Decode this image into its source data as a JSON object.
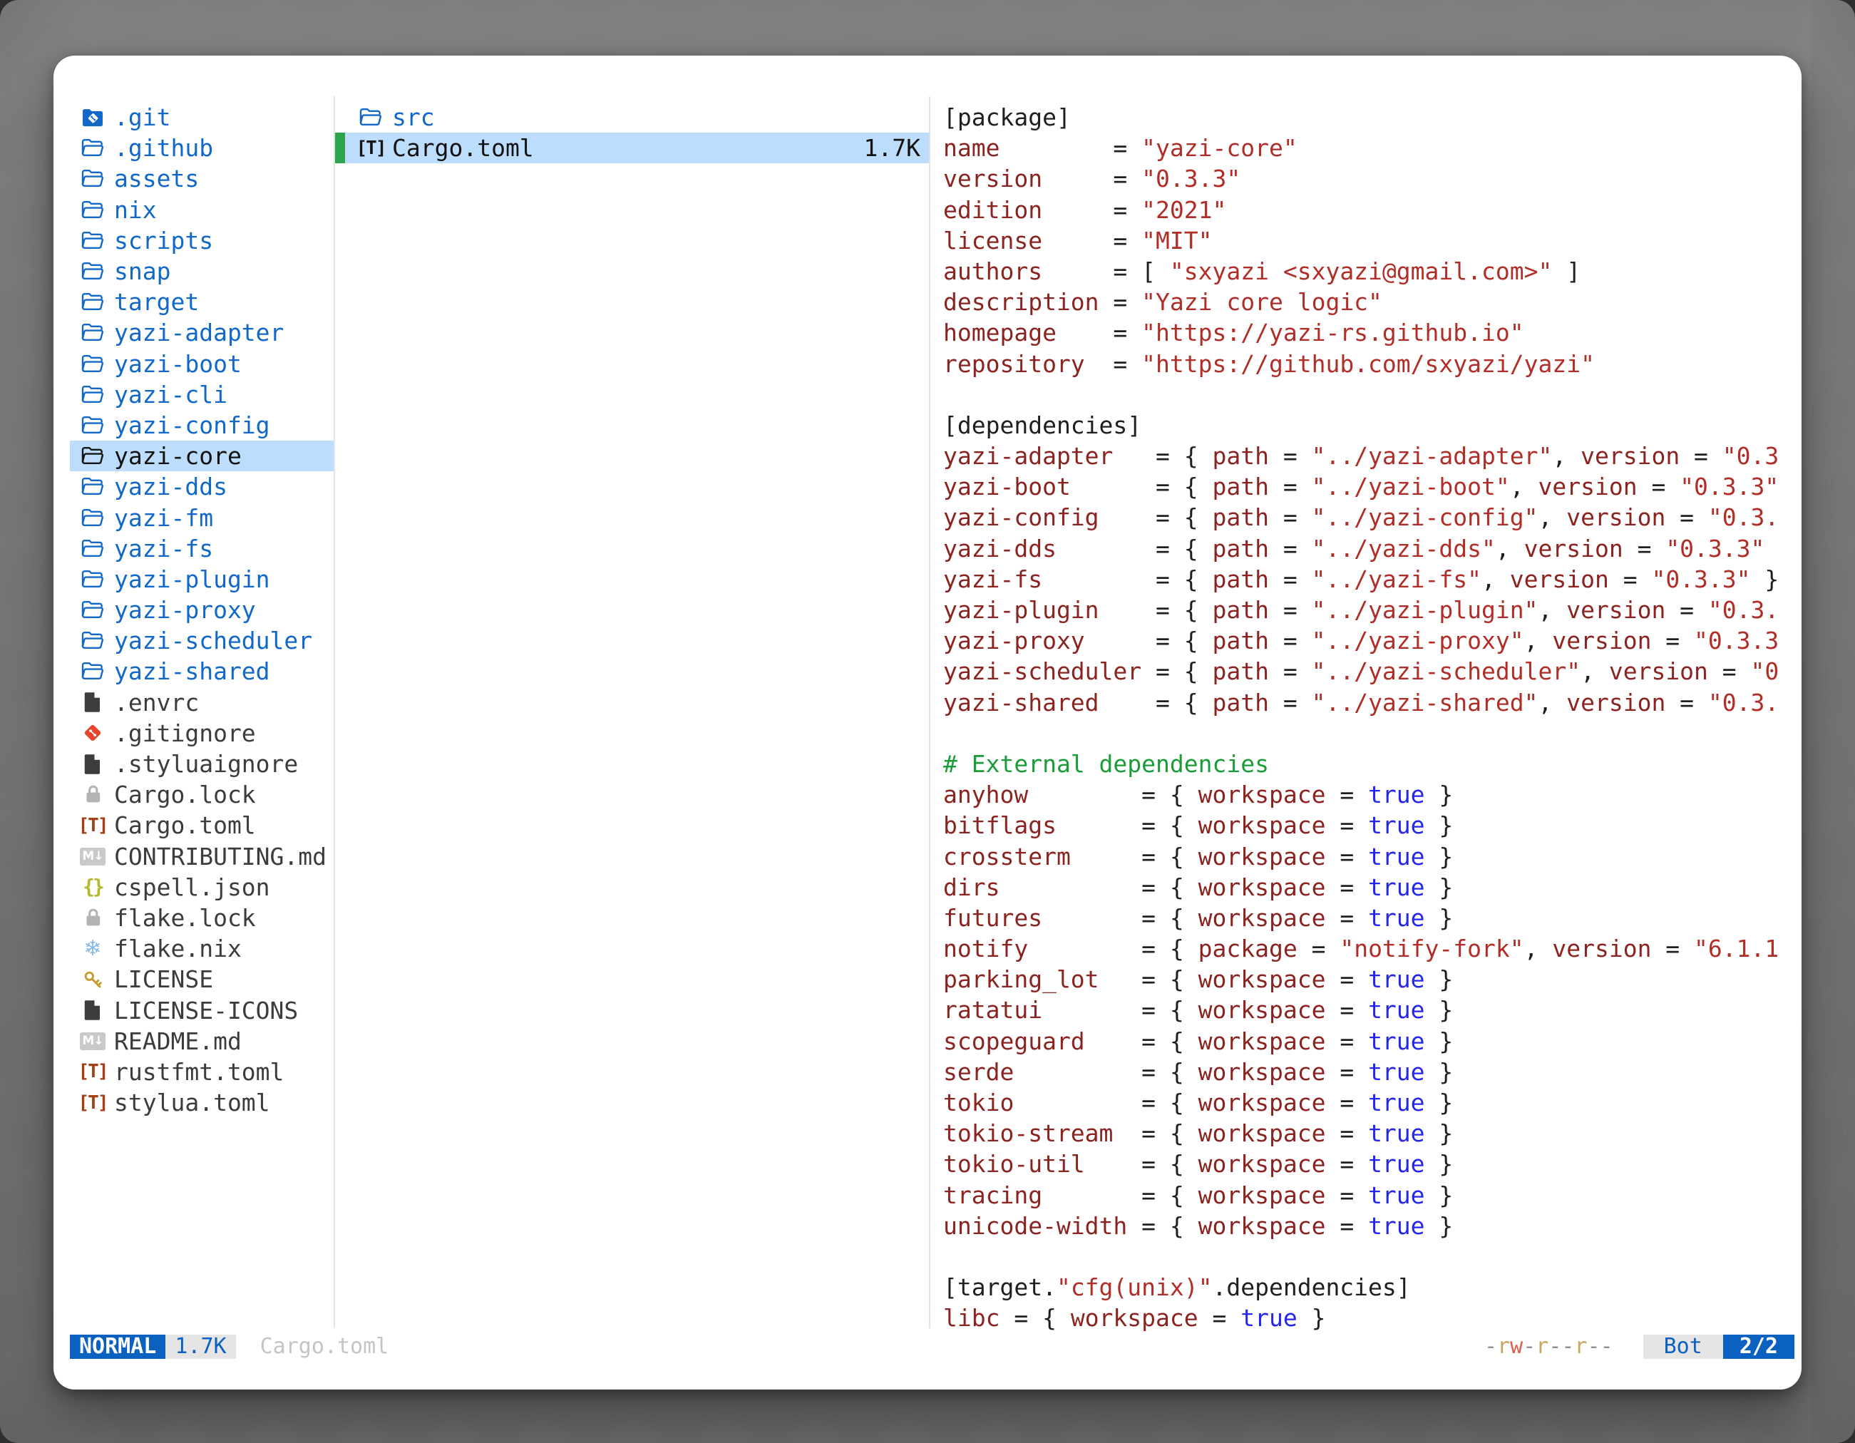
{
  "colors": {
    "accent_blue": "#1168c9",
    "selection_bg": "#bdddfc",
    "selection_marker_green": "#2ea44f",
    "status_blue": "#0a61bf",
    "status_badge_bg": "#e5e5e5",
    "syntax_key": "#8b2421",
    "syntax_string": "#b02e27",
    "syntax_bool": "#2525f0",
    "syntax_comment": "#1a9c38",
    "perm_read": "#c8a660",
    "perm_write": "#e25b51",
    "toml_icon": "#a63e15",
    "git_icon": "#e8442c"
  },
  "parent_pane": {
    "items": [
      {
        "icon": "git-folder",
        "label": ".git",
        "kind": "folder"
      },
      {
        "icon": "folder",
        "label": ".github",
        "kind": "folder"
      },
      {
        "icon": "folder",
        "label": "assets",
        "kind": "folder"
      },
      {
        "icon": "folder",
        "label": "nix",
        "kind": "folder"
      },
      {
        "icon": "folder",
        "label": "scripts",
        "kind": "folder"
      },
      {
        "icon": "folder",
        "label": "snap",
        "kind": "folder"
      },
      {
        "icon": "folder",
        "label": "target",
        "kind": "folder"
      },
      {
        "icon": "folder",
        "label": "yazi-adapter",
        "kind": "folder"
      },
      {
        "icon": "folder",
        "label": "yazi-boot",
        "kind": "folder"
      },
      {
        "icon": "folder",
        "label": "yazi-cli",
        "kind": "folder"
      },
      {
        "icon": "folder",
        "label": "yazi-config",
        "kind": "folder"
      },
      {
        "icon": "folder",
        "label": "yazi-core",
        "kind": "folder",
        "selected": true
      },
      {
        "icon": "folder",
        "label": "yazi-dds",
        "kind": "folder"
      },
      {
        "icon": "folder",
        "label": "yazi-fm",
        "kind": "folder"
      },
      {
        "icon": "folder",
        "label": "yazi-fs",
        "kind": "folder"
      },
      {
        "icon": "folder",
        "label": "yazi-plugin",
        "kind": "folder"
      },
      {
        "icon": "folder",
        "label": "yazi-proxy",
        "kind": "folder"
      },
      {
        "icon": "folder",
        "label": "yazi-scheduler",
        "kind": "folder"
      },
      {
        "icon": "folder",
        "label": "yazi-shared",
        "kind": "folder"
      },
      {
        "icon": "file",
        "label": ".envrc",
        "kind": "file"
      },
      {
        "icon": "git",
        "label": ".gitignore",
        "kind": "file"
      },
      {
        "icon": "file",
        "label": ".styluaignore",
        "kind": "file"
      },
      {
        "icon": "lock",
        "label": "Cargo.lock",
        "kind": "file"
      },
      {
        "icon": "toml",
        "label": "Cargo.toml",
        "kind": "file"
      },
      {
        "icon": "markdown",
        "label": "CONTRIBUTING.md",
        "kind": "file"
      },
      {
        "icon": "json",
        "label": "cspell.json",
        "kind": "file"
      },
      {
        "icon": "lock",
        "label": "flake.lock",
        "kind": "file"
      },
      {
        "icon": "nix",
        "label": "flake.nix",
        "kind": "file"
      },
      {
        "icon": "key",
        "label": "LICENSE",
        "kind": "file"
      },
      {
        "icon": "file",
        "label": "LICENSE-ICONS",
        "kind": "file"
      },
      {
        "icon": "markdown",
        "label": "README.md",
        "kind": "file"
      },
      {
        "icon": "toml",
        "label": "rustfmt.toml",
        "kind": "file"
      },
      {
        "icon": "toml",
        "label": "stylua.toml",
        "kind": "file"
      }
    ]
  },
  "current_pane": {
    "items": [
      {
        "icon": "folder",
        "label": "src",
        "kind": "folder"
      },
      {
        "icon": "toml",
        "label": "Cargo.toml",
        "kind": "file",
        "size": "1.7K",
        "selected": true
      }
    ]
  },
  "preview": {
    "lines": [
      [
        [
          "p",
          "[package]"
        ]
      ],
      [
        [
          "k",
          "name        "
        ],
        [
          "p",
          "= "
        ],
        [
          "s",
          "\"yazi-core\""
        ]
      ],
      [
        [
          "k",
          "version     "
        ],
        [
          "p",
          "= "
        ],
        [
          "s",
          "\"0.3.3\""
        ]
      ],
      [
        [
          "k",
          "edition     "
        ],
        [
          "p",
          "= "
        ],
        [
          "s",
          "\"2021\""
        ]
      ],
      [
        [
          "k",
          "license     "
        ],
        [
          "p",
          "= "
        ],
        [
          "s",
          "\"MIT\""
        ]
      ],
      [
        [
          "k",
          "authors     "
        ],
        [
          "p",
          "= [ "
        ],
        [
          "s",
          "\"sxyazi <sxyazi@gmail.com>\""
        ],
        [
          "p",
          " ]"
        ]
      ],
      [
        [
          "k",
          "description "
        ],
        [
          "p",
          "= "
        ],
        [
          "s",
          "\"Yazi core logic\""
        ]
      ],
      [
        [
          "k",
          "homepage    "
        ],
        [
          "p",
          "= "
        ],
        [
          "s",
          "\"https://yazi-rs.github.io\""
        ]
      ],
      [
        [
          "k",
          "repository  "
        ],
        [
          "p",
          "= "
        ],
        [
          "s",
          "\"https://github.com/sxyazi/yazi\""
        ]
      ],
      [],
      [
        [
          "p",
          "[dependencies]"
        ]
      ],
      [
        [
          "k",
          "yazi-adapter   "
        ],
        [
          "p",
          "= { "
        ],
        [
          "k",
          "path"
        ],
        [
          "p",
          " = "
        ],
        [
          "s",
          "\"../yazi-adapter\""
        ],
        [
          "p",
          ", "
        ],
        [
          "k",
          "version"
        ],
        [
          "p",
          " = "
        ],
        [
          "s",
          "\"0.3"
        ]
      ],
      [
        [
          "k",
          "yazi-boot      "
        ],
        [
          "p",
          "= { "
        ],
        [
          "k",
          "path"
        ],
        [
          "p",
          " = "
        ],
        [
          "s",
          "\"../yazi-boot\""
        ],
        [
          "p",
          ", "
        ],
        [
          "k",
          "version"
        ],
        [
          "p",
          " = "
        ],
        [
          "s",
          "\"0.3.3\""
        ]
      ],
      [
        [
          "k",
          "yazi-config    "
        ],
        [
          "p",
          "= { "
        ],
        [
          "k",
          "path"
        ],
        [
          "p",
          " = "
        ],
        [
          "s",
          "\"../yazi-config\""
        ],
        [
          "p",
          ", "
        ],
        [
          "k",
          "version"
        ],
        [
          "p",
          " = "
        ],
        [
          "s",
          "\"0.3."
        ]
      ],
      [
        [
          "k",
          "yazi-dds       "
        ],
        [
          "p",
          "= { "
        ],
        [
          "k",
          "path"
        ],
        [
          "p",
          " = "
        ],
        [
          "s",
          "\"../yazi-dds\""
        ],
        [
          "p",
          ", "
        ],
        [
          "k",
          "version"
        ],
        [
          "p",
          " = "
        ],
        [
          "s",
          "\"0.3.3\""
        ]
      ],
      [
        [
          "k",
          "yazi-fs        "
        ],
        [
          "p",
          "= { "
        ],
        [
          "k",
          "path"
        ],
        [
          "p",
          " = "
        ],
        [
          "s",
          "\"../yazi-fs\""
        ],
        [
          "p",
          ", "
        ],
        [
          "k",
          "version"
        ],
        [
          "p",
          " = "
        ],
        [
          "s",
          "\"0.3.3\""
        ],
        [
          "p",
          " }"
        ]
      ],
      [
        [
          "k",
          "yazi-plugin    "
        ],
        [
          "p",
          "= { "
        ],
        [
          "k",
          "path"
        ],
        [
          "p",
          " = "
        ],
        [
          "s",
          "\"../yazi-plugin\""
        ],
        [
          "p",
          ", "
        ],
        [
          "k",
          "version"
        ],
        [
          "p",
          " = "
        ],
        [
          "s",
          "\"0.3."
        ]
      ],
      [
        [
          "k",
          "yazi-proxy     "
        ],
        [
          "p",
          "= { "
        ],
        [
          "k",
          "path"
        ],
        [
          "p",
          " = "
        ],
        [
          "s",
          "\"../yazi-proxy\""
        ],
        [
          "p",
          ", "
        ],
        [
          "k",
          "version"
        ],
        [
          "p",
          " = "
        ],
        [
          "s",
          "\"0.3.3"
        ]
      ],
      [
        [
          "k",
          "yazi-scheduler "
        ],
        [
          "p",
          "= { "
        ],
        [
          "k",
          "path"
        ],
        [
          "p",
          " = "
        ],
        [
          "s",
          "\"../yazi-scheduler\""
        ],
        [
          "p",
          ", "
        ],
        [
          "k",
          "version"
        ],
        [
          "p",
          " = "
        ],
        [
          "s",
          "\"0"
        ]
      ],
      [
        [
          "k",
          "yazi-shared    "
        ],
        [
          "p",
          "= { "
        ],
        [
          "k",
          "path"
        ],
        [
          "p",
          " = "
        ],
        [
          "s",
          "\"../yazi-shared\""
        ],
        [
          "p",
          ", "
        ],
        [
          "k",
          "version"
        ],
        [
          "p",
          " = "
        ],
        [
          "s",
          "\"0.3."
        ]
      ],
      [],
      [
        [
          "c",
          "# External dependencies"
        ]
      ],
      [
        [
          "k",
          "anyhow        "
        ],
        [
          "p",
          "= { "
        ],
        [
          "k",
          "workspace"
        ],
        [
          "p",
          " = "
        ],
        [
          "b",
          "true"
        ],
        [
          "p",
          " }"
        ]
      ],
      [
        [
          "k",
          "bitflags      "
        ],
        [
          "p",
          "= { "
        ],
        [
          "k",
          "workspace"
        ],
        [
          "p",
          " = "
        ],
        [
          "b",
          "true"
        ],
        [
          "p",
          " }"
        ]
      ],
      [
        [
          "k",
          "crossterm     "
        ],
        [
          "p",
          "= { "
        ],
        [
          "k",
          "workspace"
        ],
        [
          "p",
          " = "
        ],
        [
          "b",
          "true"
        ],
        [
          "p",
          " }"
        ]
      ],
      [
        [
          "k",
          "dirs          "
        ],
        [
          "p",
          "= { "
        ],
        [
          "k",
          "workspace"
        ],
        [
          "p",
          " = "
        ],
        [
          "b",
          "true"
        ],
        [
          "p",
          " }"
        ]
      ],
      [
        [
          "k",
          "futures       "
        ],
        [
          "p",
          "= { "
        ],
        [
          "k",
          "workspace"
        ],
        [
          "p",
          " = "
        ],
        [
          "b",
          "true"
        ],
        [
          "p",
          " }"
        ]
      ],
      [
        [
          "k",
          "notify        "
        ],
        [
          "p",
          "= { "
        ],
        [
          "k",
          "package"
        ],
        [
          "p",
          " = "
        ],
        [
          "s",
          "\"notify-fork\""
        ],
        [
          "p",
          ", "
        ],
        [
          "k",
          "version"
        ],
        [
          "p",
          " = "
        ],
        [
          "s",
          "\"6.1.1"
        ]
      ],
      [
        [
          "k",
          "parking_lot   "
        ],
        [
          "p",
          "= { "
        ],
        [
          "k",
          "workspace"
        ],
        [
          "p",
          " = "
        ],
        [
          "b",
          "true"
        ],
        [
          "p",
          " }"
        ]
      ],
      [
        [
          "k",
          "ratatui       "
        ],
        [
          "p",
          "= { "
        ],
        [
          "k",
          "workspace"
        ],
        [
          "p",
          " = "
        ],
        [
          "b",
          "true"
        ],
        [
          "p",
          " }"
        ]
      ],
      [
        [
          "k",
          "scopeguard    "
        ],
        [
          "p",
          "= { "
        ],
        [
          "k",
          "workspace"
        ],
        [
          "p",
          " = "
        ],
        [
          "b",
          "true"
        ],
        [
          "p",
          " }"
        ]
      ],
      [
        [
          "k",
          "serde         "
        ],
        [
          "p",
          "= { "
        ],
        [
          "k",
          "workspace"
        ],
        [
          "p",
          " = "
        ],
        [
          "b",
          "true"
        ],
        [
          "p",
          " }"
        ]
      ],
      [
        [
          "k",
          "tokio         "
        ],
        [
          "p",
          "= { "
        ],
        [
          "k",
          "workspace"
        ],
        [
          "p",
          " = "
        ],
        [
          "b",
          "true"
        ],
        [
          "p",
          " }"
        ]
      ],
      [
        [
          "k",
          "tokio-stream  "
        ],
        [
          "p",
          "= { "
        ],
        [
          "k",
          "workspace"
        ],
        [
          "p",
          " = "
        ],
        [
          "b",
          "true"
        ],
        [
          "p",
          " }"
        ]
      ],
      [
        [
          "k",
          "tokio-util    "
        ],
        [
          "p",
          "= { "
        ],
        [
          "k",
          "workspace"
        ],
        [
          "p",
          " = "
        ],
        [
          "b",
          "true"
        ],
        [
          "p",
          " }"
        ]
      ],
      [
        [
          "k",
          "tracing       "
        ],
        [
          "p",
          "= { "
        ],
        [
          "k",
          "workspace"
        ],
        [
          "p",
          " = "
        ],
        [
          "b",
          "true"
        ],
        [
          "p",
          " }"
        ]
      ],
      [
        [
          "k",
          "unicode-width "
        ],
        [
          "p",
          "= { "
        ],
        [
          "k",
          "workspace"
        ],
        [
          "p",
          " = "
        ],
        [
          "b",
          "true"
        ],
        [
          "p",
          " }"
        ]
      ],
      [],
      [
        [
          "p",
          "[target."
        ],
        [
          "s",
          "\"cfg(unix)\""
        ],
        [
          "p",
          ".dependencies]"
        ]
      ],
      [
        [
          "k",
          "libc"
        ],
        [
          "p",
          " = { "
        ],
        [
          "k",
          "workspace"
        ],
        [
          "p",
          " = "
        ],
        [
          "b",
          "true"
        ],
        [
          "p",
          " }"
        ]
      ]
    ]
  },
  "status_bar": {
    "mode": "NORMAL",
    "size": "1.7K",
    "filename": "Cargo.toml",
    "permissions": "-rw-r--r--",
    "position_label": "Bot",
    "counter": "2/2"
  }
}
